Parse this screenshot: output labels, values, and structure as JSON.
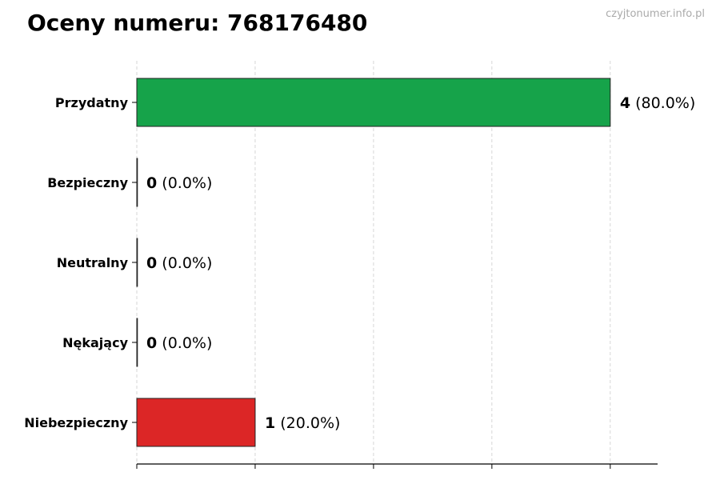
{
  "title": "Oceny numeru: 768176480",
  "watermark": "czyjtonumer.info.pl",
  "chart_data": {
    "type": "bar",
    "orientation": "horizontal",
    "title": "Oceny numeru: 768176480",
    "categories": [
      "Przydatny",
      "Bezpieczny",
      "Neutralny",
      "Nękający",
      "Niebezpieczny"
    ],
    "values": [
      4,
      0,
      0,
      0,
      1
    ],
    "labels": [
      "(80.0%)",
      "(0.0%)",
      "(0.0%)",
      "(0.0%)",
      "(20.0%)"
    ],
    "colors": [
      "#16a34a",
      "#16a34a",
      "#9ca3af",
      "#dc2626",
      "#dc2626"
    ],
    "xlim": [
      0,
      4.4
    ],
    "xticks": [
      0,
      1,
      2,
      3,
      4
    ],
    "xtick_labels_visible": false,
    "grid": "x, dashed",
    "xlabel": "",
    "ylabel": ""
  }
}
